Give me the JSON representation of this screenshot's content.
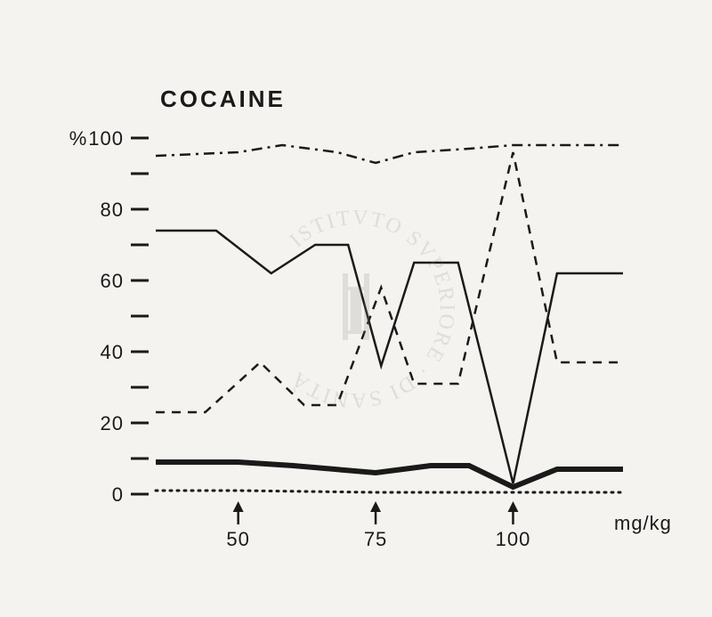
{
  "chart": {
    "type": "line",
    "title": "COCAINE",
    "title_fontsize": 26,
    "label_fontsize": 22,
    "background_color": "#f5f3ef",
    "line_color": "#1a1a1a",
    "y_axis": {
      "label": "%",
      "ticks": [
        0,
        20,
        40,
        60,
        80,
        100
      ],
      "minor_ticks": [
        10,
        30,
        50,
        70,
        90
      ],
      "tick_fontsize": 22,
      "ylim": [
        0,
        100
      ]
    },
    "x_axis": {
      "label": "mg/kg",
      "arrow_markers": [
        50,
        75,
        100
      ],
      "xlim": [
        35,
        120
      ],
      "tick_fontsize": 22
    },
    "series": [
      {
        "name": "dashdot-top",
        "style": "dash-dot",
        "stroke_width": 2.5,
        "dash": "12 6 3 6",
        "points": [
          {
            "x": 35,
            "y": 95
          },
          {
            "x": 50,
            "y": 96
          },
          {
            "x": 58,
            "y": 98
          },
          {
            "x": 68,
            "y": 96
          },
          {
            "x": 75,
            "y": 93
          },
          {
            "x": 82,
            "y": 96
          },
          {
            "x": 92,
            "y": 97
          },
          {
            "x": 100,
            "y": 98
          },
          {
            "x": 110,
            "y": 98
          },
          {
            "x": 120,
            "y": 98
          }
        ]
      },
      {
        "name": "solid-thin",
        "style": "solid",
        "stroke_width": 2.5,
        "dash": "none",
        "points": [
          {
            "x": 35,
            "y": 74
          },
          {
            "x": 46,
            "y": 74
          },
          {
            "x": 56,
            "y": 62
          },
          {
            "x": 64,
            "y": 70
          },
          {
            "x": 70,
            "y": 70
          },
          {
            "x": 76,
            "y": 36
          },
          {
            "x": 82,
            "y": 65
          },
          {
            "x": 90,
            "y": 65
          },
          {
            "x": 100,
            "y": 3
          },
          {
            "x": 108,
            "y": 62
          },
          {
            "x": 120,
            "y": 62
          }
        ]
      },
      {
        "name": "dashed",
        "style": "dashed",
        "stroke_width": 2.5,
        "dash": "10 8",
        "points": [
          {
            "x": 35,
            "y": 23
          },
          {
            "x": 44,
            "y": 23
          },
          {
            "x": 54,
            "y": 37
          },
          {
            "x": 62,
            "y": 25
          },
          {
            "x": 68,
            "y": 25
          },
          {
            "x": 76,
            "y": 58
          },
          {
            "x": 82,
            "y": 31
          },
          {
            "x": 90,
            "y": 31
          },
          {
            "x": 100,
            "y": 96
          },
          {
            "x": 108,
            "y": 37
          },
          {
            "x": 120,
            "y": 37
          }
        ]
      },
      {
        "name": "solid-thick",
        "style": "solid",
        "stroke_width": 6,
        "dash": "none",
        "points": [
          {
            "x": 35,
            "y": 9
          },
          {
            "x": 50,
            "y": 9
          },
          {
            "x": 60,
            "y": 8
          },
          {
            "x": 75,
            "y": 6
          },
          {
            "x": 85,
            "y": 8
          },
          {
            "x": 92,
            "y": 8
          },
          {
            "x": 100,
            "y": 2
          },
          {
            "x": 108,
            "y": 7
          },
          {
            "x": 120,
            "y": 7
          }
        ]
      },
      {
        "name": "dotted-bottom",
        "style": "dotted",
        "stroke_width": 3,
        "dash": "2 6",
        "points": [
          {
            "x": 35,
            "y": 1
          },
          {
            "x": 50,
            "y": 1
          },
          {
            "x": 75,
            "y": 0.5
          },
          {
            "x": 100,
            "y": 0.5
          },
          {
            "x": 120,
            "y": 0.5
          }
        ]
      }
    ]
  },
  "watermark": {
    "text_top": "ISTITVTO SVPERIORE",
    "text_bottom": "DI SANITÀ"
  }
}
